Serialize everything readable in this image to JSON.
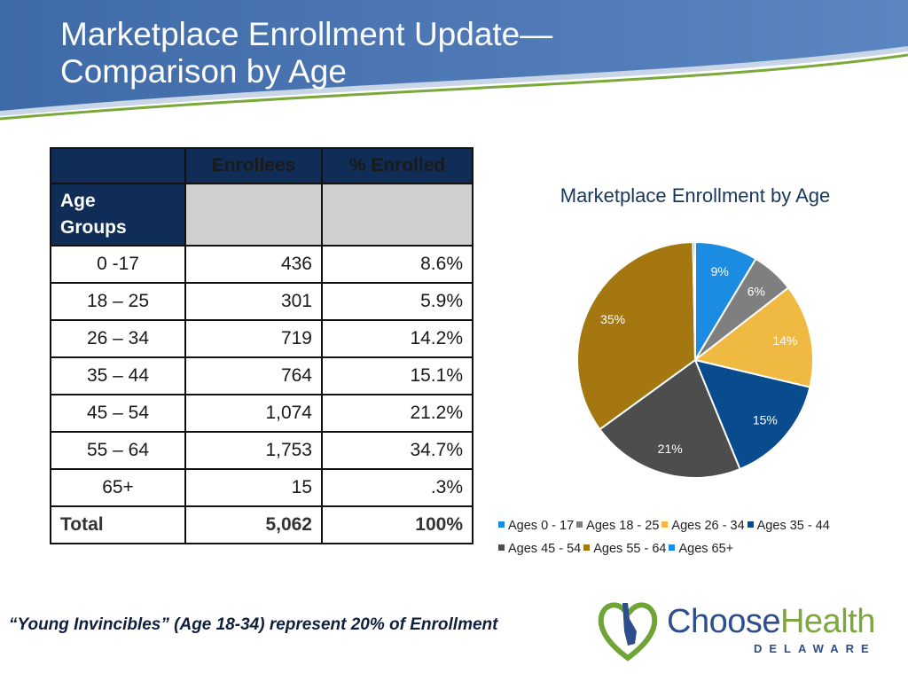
{
  "title": {
    "line1": "Marketplace Enrollment Update—",
    "line2": "Comparison by Age"
  },
  "table": {
    "headers": [
      "",
      "Enrollees",
      "% Enrolled"
    ],
    "group_label_line1": "Age",
    "group_label_line2": "Groups",
    "rows": [
      {
        "age": "0 -17",
        "enrollees": "436",
        "pct": "8.6%"
      },
      {
        "age": "18 – 25",
        "enrollees": "301",
        "pct": "5.9%"
      },
      {
        "age": "26 – 34",
        "enrollees": "719",
        "pct": "14.2%"
      },
      {
        "age": "35 – 44",
        "enrollees": "764",
        "pct": "15.1%"
      },
      {
        "age": "45 – 54",
        "enrollees": "1,074",
        "pct": "21.2%"
      },
      {
        "age": "55 – 64",
        "enrollees": "1,753",
        "pct": "34.7%"
      },
      {
        "age": "65+",
        "enrollees": "15",
        "pct": ".3%"
      }
    ],
    "total": {
      "label": "Total",
      "enrollees": "5,062",
      "pct": "100%"
    }
  },
  "chart_data": {
    "type": "pie",
    "title": "Marketplace Enrollment by Age",
    "categories": [
      "Ages 0 - 17",
      "Ages 18 - 25",
      "Ages 26 - 34",
      "Ages 35 - 44",
      "Ages 45 - 54",
      "Ages 55 - 64",
      "Ages 65+"
    ],
    "values": [
      8.6,
      5.9,
      14.2,
      15.1,
      21.2,
      34.7,
      0.3
    ],
    "data_labels": [
      "9%",
      "6%",
      "14%",
      "15%",
      "21%",
      "35%",
      ""
    ],
    "colors": [
      "#1c8ce3",
      "#7f7f7f",
      "#f0b942",
      "#084c8d",
      "#4d4d4d",
      "#a57710",
      "#1c8ce3"
    ],
    "label_colors": [
      "#ffffff",
      "#ffffff",
      "#ffffff",
      "#ffffff",
      "#ffffff",
      "#ffffff",
      "#ffffff"
    ],
    "legend_position": "bottom"
  },
  "footer": {
    "quote": "“Young Invincibles” (Age 18-34) represent 20% of Enrollment",
    "logo_part1": "Choose",
    "logo_part2": "Health",
    "logo_sub": "DELAWARE"
  },
  "colors": {
    "banner": "#4a73b0",
    "table_header": "#0f2d57",
    "chart_title": "#17375e"
  }
}
